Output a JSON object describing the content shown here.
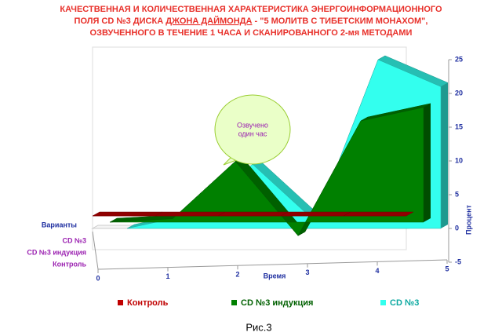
{
  "chart_data": {
    "type": "area3d",
    "title_lines": [
      [
        "КАЧЕСТВЕННАЯ И КОЛИЧЕСТВЕННАЯ ХАРАКТЕРИСТИКА ЭНЕРГОИНФОРМАЦИОННОГО"
      ],
      [
        "ПОЛЯ CD №3 ДИСКА ",
        "ДЖОНА ДАЙМОНДА",
        " - \"5 МОЛИТВ С ТИБЕТСКИМ МОНАХОМ\","
      ],
      [
        "ОЗВУЧЕННОГО В ТЕЧЕНИЕ 1 ЧАСА И СКАНИРОВАННОГО 2-мя МЕТОДАМИ"
      ]
    ],
    "x_label": "Время",
    "y_label": "Процент",
    "z_label": "Варианты",
    "x": [
      0,
      1,
      2,
      3,
      4,
      5
    ],
    "xlim": [
      0,
      5
    ],
    "xticks": [
      0,
      1,
      2,
      3,
      4,
      5
    ],
    "ylim": [
      -5,
      25
    ],
    "yticks": [
      -5,
      0,
      5,
      10,
      15,
      20,
      25
    ],
    "series": [
      {
        "name": "Контроль",
        "color": "#c00000",
        "values": [
          0,
          0,
          0,
          0,
          0,
          0
        ]
      },
      {
        "name": "CD №3 индукция",
        "color": "#008000",
        "values": [
          0,
          0.5,
          9,
          -2,
          15,
          17
        ]
      },
      {
        "name": "CD №3",
        "color": "#33ffee",
        "values": [
          0,
          2,
          9.5,
          1,
          25,
          21
        ]
      }
    ],
    "annotation": [
      "Озвучено",
      "один час"
    ],
    "caption": "Рис.3"
  }
}
